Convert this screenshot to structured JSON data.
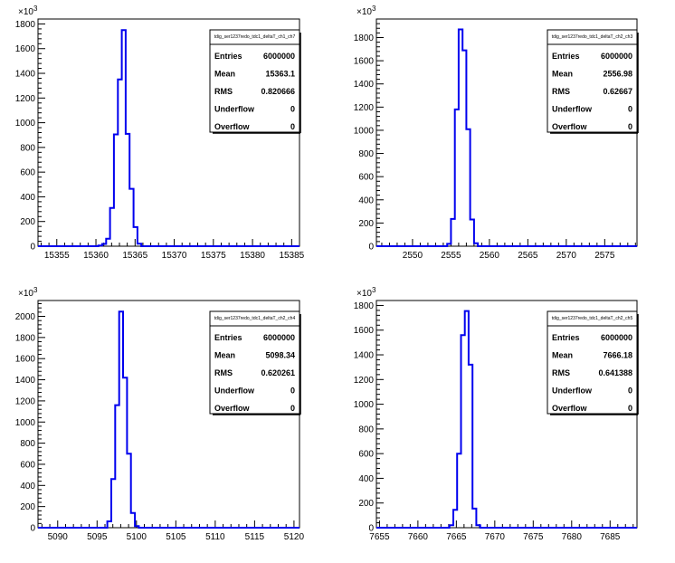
{
  "colors": {
    "histogram": "#0000ee",
    "frame": "#000000",
    "background": "#ffffff"
  },
  "chart_data": [
    {
      "type": "histogram",
      "title": "tdig_ser1237redo_tdc1_deltaT_ch1_ch7",
      "stats": {
        "Entries": "6000000",
        "Mean": "15363.1",
        "RMS": "0.820666",
        "Underflow": "0",
        "Overflow": "0"
      },
      "y_exponent": "10^3",
      "xlim": [
        15352.6,
        15386.0
      ],
      "ylim": [
        0,
        1840
      ],
      "xticks": [
        "15355",
        "15360",
        "15365",
        "15370",
        "15375",
        "15380",
        "15385"
      ],
      "yticks": [
        "0",
        "200",
        "400",
        "600",
        "800",
        "1000",
        "1200",
        "1400",
        "1600",
        "1800"
      ],
      "bin_edges": [
        15360.3,
        15360.8,
        15361.3,
        15361.8,
        15362.3,
        15362.8,
        15363.3,
        15363.8,
        15364.3,
        15364.8,
        15365.3,
        15365.8
      ],
      "values": [
        5,
        18,
        60,
        310,
        905,
        1350,
        1750,
        910,
        465,
        155,
        20
      ]
    },
    {
      "type": "histogram",
      "title": "tdig_ser1237redo_tdc1_deltaT_ch2_ch3",
      "stats": {
        "Entries": "6000000",
        "Mean": "2556.98",
        "RMS": "0.62667",
        "Underflow": "0",
        "Overflow": "0"
      },
      "y_exponent": "10^3",
      "xlim": [
        2545.3,
        2579.2
      ],
      "ylim": [
        0,
        1960
      ],
      "xticks": [
        "2550",
        "2555",
        "2560",
        "2565",
        "2570",
        "2575"
      ],
      "yticks": [
        "0",
        "200",
        "400",
        "600",
        "800",
        "1000",
        "1200",
        "1400",
        "1600",
        "1800"
      ],
      "bin_edges": [
        2554.5,
        2555.0,
        2555.5,
        2556.0,
        2556.5,
        2557.0,
        2557.5,
        2558.0,
        2558.5
      ],
      "values": [
        20,
        235,
        1180,
        1870,
        1690,
        1010,
        230,
        25
      ]
    },
    {
      "type": "histogram",
      "title": "tdig_ser1237redo_tdc1_deltaT_ch2_ch4",
      "stats": {
        "Entries": "6000000",
        "Mean": "5098.34",
        "RMS": "0.620261",
        "Underflow": "0",
        "Overflow": "0"
      },
      "y_exponent": "10^3",
      "xlim": [
        5087.5,
        5120.7
      ],
      "ylim": [
        0,
        2150
      ],
      "xticks": [
        "5090",
        "5095",
        "5100",
        "5105",
        "5110",
        "5115",
        "5120"
      ],
      "yticks": [
        "0",
        "200",
        "400",
        "600",
        "800",
        "1000",
        "1200",
        "1400",
        "1600",
        "1800",
        "2000"
      ],
      "bin_edges": [
        5096.3,
        5096.8,
        5097.3,
        5097.8,
        5098.3,
        5098.8,
        5099.3,
        5099.8,
        5100.3
      ],
      "values": [
        60,
        460,
        1160,
        2045,
        1420,
        700,
        140,
        15
      ]
    },
    {
      "type": "histogram",
      "title": "tdig_ser1237redo_tdc1_deltaT_ch2_ch5",
      "stats": {
        "Entries": "6000000",
        "Mean": "7666.18",
        "RMS": "0.641388",
        "Underflow": "0",
        "Overflow": "0"
      },
      "y_exponent": "10^3",
      "xlim": [
        7654.6,
        7688.5
      ],
      "ylim": [
        0,
        1840
      ],
      "xticks": [
        "7655",
        "7660",
        "7665",
        "7670",
        "7675",
        "7680",
        "7685"
      ],
      "yticks": [
        "0",
        "200",
        "400",
        "600",
        "800",
        "1000",
        "1200",
        "1400",
        "1600",
        "1800"
      ],
      "bin_edges": [
        7664.1,
        7664.6,
        7665.1,
        7665.6,
        7666.1,
        7666.6,
        7667.1,
        7667.6,
        7668.1
      ],
      "values": [
        20,
        145,
        600,
        1560,
        1755,
        1320,
        155,
        20
      ]
    }
  ]
}
